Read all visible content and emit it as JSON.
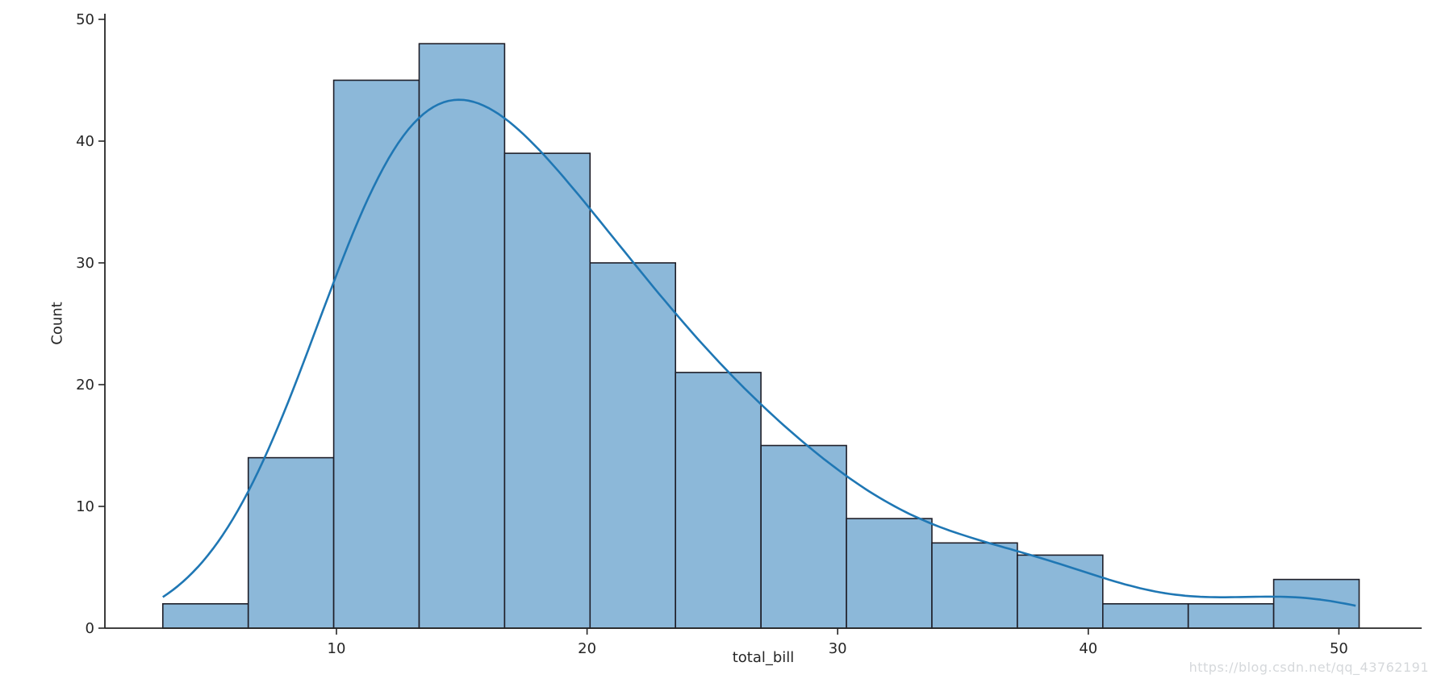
{
  "figure": {
    "watermark": "https://blog.csdn.net/qq_43762191"
  },
  "chart_data": {
    "type": "bar",
    "subtype": "histogram_with_kde",
    "title": "",
    "xlabel": "total_bill",
    "ylabel": "Count",
    "bin_edges": [
      3.07,
      6.48,
      9.89,
      13.3,
      16.71,
      20.12,
      23.53,
      26.94,
      30.35,
      33.76,
      37.17,
      40.58,
      43.99,
      47.4,
      50.81
    ],
    "counts": [
      2,
      14,
      45,
      48,
      39,
      30,
      21,
      15,
      9,
      7,
      6,
      2,
      2,
      4
    ],
    "total_n": 244,
    "x_ticks": [
      10,
      20,
      30,
      40,
      50
    ],
    "y_ticks": [
      0,
      10,
      20,
      30,
      40,
      50
    ],
    "xlim": [
      0.75,
      53.3
    ],
    "ylim": [
      0,
      50
    ],
    "grid": false,
    "legend": "none",
    "kde": {
      "bandwidth": 2.96,
      "x_min": 3.07,
      "x_max": 50.81,
      "peak_x": 15.3,
      "peak_count": 44.3
    },
    "colors": {
      "bar_fill": "#8cb8d9",
      "bar_edge": "#1e1e28",
      "kde_line": "#1f77b4",
      "axis": "#262626",
      "tick_label": "#262626",
      "watermark": "#d5d8db"
    }
  }
}
